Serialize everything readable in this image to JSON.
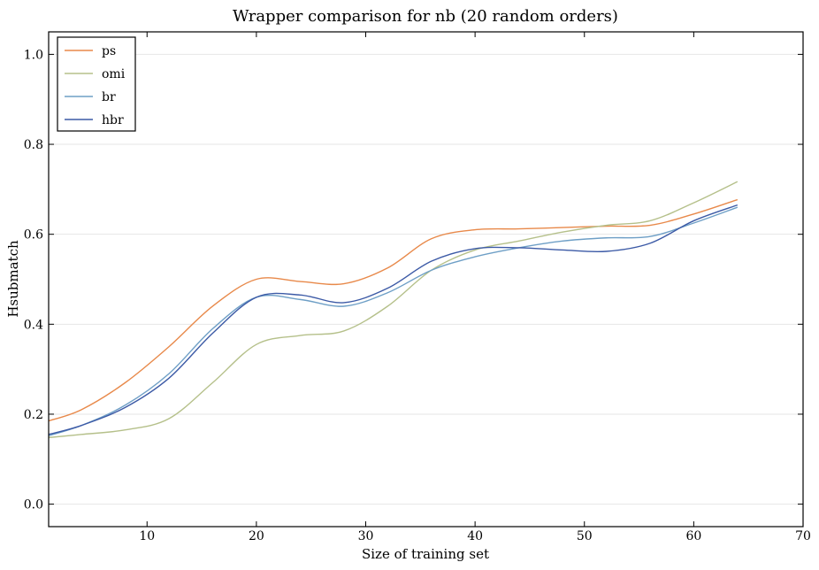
{
  "chart_data": {
    "type": "line",
    "title": "Wrapper comparison for nb (20 random orders)",
    "xlabel": "Size of training set",
    "ylabel": "Hsubmatch",
    "xlim": [
      1,
      70
    ],
    "ylim": [
      -0.05,
      1.05
    ],
    "xticks": [
      10,
      20,
      30,
      40,
      50,
      60,
      70
    ],
    "yticks": [
      0.0,
      0.2,
      0.4,
      0.6,
      0.8,
      1.0
    ],
    "ytick_labels": [
      "0.0",
      "0.2",
      "0.4",
      "0.6",
      "0.8",
      "1.0"
    ],
    "grid": "horizontal",
    "legend": "top-left",
    "x": [
      1,
      4,
      8,
      12,
      16,
      20,
      24,
      28,
      32,
      36,
      40,
      44,
      48,
      52,
      56,
      60,
      64
    ],
    "series": [
      {
        "name": "ps",
        "color": "#e8894a",
        "values": [
          0.185,
          0.21,
          0.27,
          0.35,
          0.44,
          0.5,
          0.495,
          0.49,
          0.525,
          0.59,
          0.61,
          0.612,
          0.615,
          0.618,
          0.62,
          0.645,
          0.677
        ]
      },
      {
        "name": "omi",
        "color": "#b5c08a",
        "values": [
          0.148,
          0.155,
          0.165,
          0.19,
          0.27,
          0.355,
          0.375,
          0.385,
          0.44,
          0.52,
          0.565,
          0.585,
          0.605,
          0.62,
          0.63,
          0.67,
          0.717
        ]
      },
      {
        "name": "br",
        "color": "#6e9fc6",
        "values": [
          0.152,
          0.175,
          0.22,
          0.29,
          0.39,
          0.46,
          0.455,
          0.44,
          0.47,
          0.52,
          0.55,
          0.57,
          0.585,
          0.592,
          0.595,
          0.625,
          0.66
        ]
      },
      {
        "name": "hbr",
        "color": "#3c5aa6",
        "values": [
          0.155,
          0.175,
          0.215,
          0.28,
          0.38,
          0.46,
          0.465,
          0.448,
          0.48,
          0.54,
          0.568,
          0.57,
          0.565,
          0.562,
          0.58,
          0.63,
          0.665
        ]
      }
    ]
  }
}
